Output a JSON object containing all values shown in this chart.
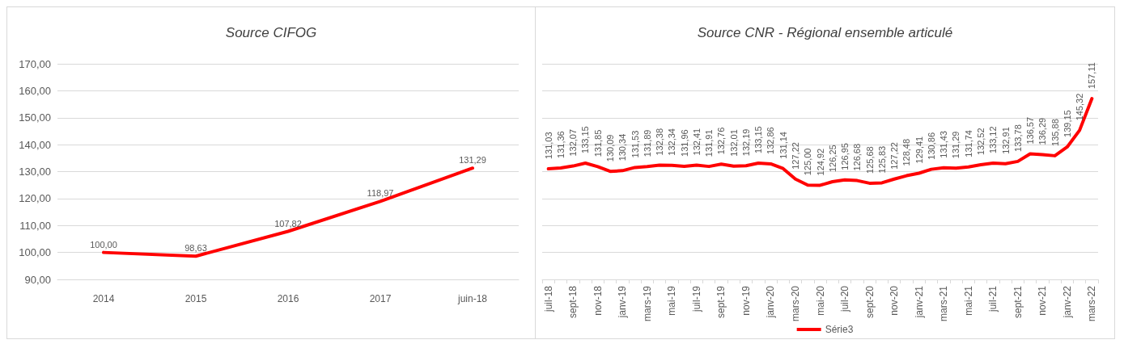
{
  "chart_data": [
    {
      "type": "line",
      "title": "Source CIFOG",
      "categories": [
        "2014",
        "2015",
        "2016",
        "2017",
        "juin-18"
      ],
      "series": [
        {
          "color": "#ff0000",
          "values": [
            100.0,
            98.63,
            107.82,
            118.97,
            131.29
          ],
          "value_labels": [
            "100,00",
            "98,63",
            "107,82",
            "118,97",
            "131,29"
          ]
        }
      ],
      "ylim": [
        90,
        170
      ],
      "yticks": [
        {
          "value": 90,
          "label": "90,00"
        },
        {
          "value": 100,
          "label": "100,00"
        },
        {
          "value": 110,
          "label": "110,00"
        },
        {
          "value": 120,
          "label": "120,00"
        },
        {
          "value": 130,
          "label": "130,00"
        },
        {
          "value": 140,
          "label": "140,00"
        },
        {
          "value": 150,
          "label": "150,00"
        },
        {
          "value": 160,
          "label": "160,00"
        },
        {
          "value": 170,
          "label": "170,00"
        }
      ],
      "grid": "y",
      "marker": "none",
      "line_style": "solid"
    },
    {
      "type": "line",
      "title": "Source CNR - Régional ensemble articulé",
      "categories": [
        "juil-18",
        null,
        "sept-18",
        null,
        "nov-18",
        null,
        "janv-19",
        null,
        "mars-19",
        null,
        "mai-19",
        null,
        "juil-19",
        null,
        "sept-19",
        null,
        "nov-19",
        null,
        "janv-20",
        null,
        "mars-20",
        null,
        "mai-20",
        null,
        "juil-20",
        null,
        "sept-20",
        null,
        "nov-20",
        null,
        "janv-21",
        null,
        "mars-21",
        null,
        "mai-21",
        null,
        "juil-21",
        null,
        "sept-21",
        null,
        "nov-21",
        null,
        "janv-22",
        null,
        "mars-22"
      ],
      "series": [
        {
          "name": "Série3",
          "color": "#ff0000",
          "values": [
            131.03,
            131.36,
            132.07,
            133.15,
            131.85,
            130.09,
            130.34,
            131.53,
            131.89,
            132.38,
            132.34,
            131.96,
            132.41,
            131.91,
            132.76,
            132.01,
            132.19,
            133.15,
            132.86,
            131.14,
            127.22,
            125.0,
            124.92,
            126.25,
            126.95,
            126.68,
            125.68,
            125.83,
            127.22,
            128.48,
            129.41,
            130.86,
            131.43,
            131.29,
            131.74,
            132.52,
            133.12,
            132.91,
            133.78,
            136.57,
            136.29,
            135.88,
            139.15,
            145.32,
            157.11
          ],
          "value_labels": [
            "131,03",
            "131,36",
            "132,07",
            "133,15",
            "131,85",
            "130,09",
            "130,34",
            "131,53",
            "131,89",
            "132,38",
            "132,34",
            "131,96",
            "132,41",
            "131,91",
            "132,76",
            "132,01",
            "132,19",
            "133,15",
            "132,86",
            "131,14",
            "127,22",
            "125,00",
            "124,92",
            "126,25",
            "126,95",
            "126,68",
            "125,68",
            "125,83",
            "127,22",
            "128,48",
            "129,41",
            "130,86",
            "131,43",
            "131,29",
            "131,74",
            "132,52",
            "133,12",
            "132,91",
            "133,78",
            "136,57",
            "136,29",
            "135,88",
            "139,15",
            "145,32",
            "157,11"
          ]
        }
      ],
      "ylim": [
        90,
        170
      ],
      "yticks": [
        {
          "value": 90,
          "label": null
        },
        {
          "value": 100,
          "label": null
        },
        {
          "value": 110,
          "label": null
        },
        {
          "value": 120,
          "label": null
        },
        {
          "value": 130,
          "label": null
        },
        {
          "value": 140,
          "label": null
        },
        {
          "value": 150,
          "label": null
        },
        {
          "value": 160,
          "label": null
        },
        {
          "value": 170,
          "label": null
        }
      ],
      "tick_labels": "x",
      "grid": "y",
      "legend": "bottom",
      "marker": "none",
      "line_style": "solid"
    }
  ]
}
